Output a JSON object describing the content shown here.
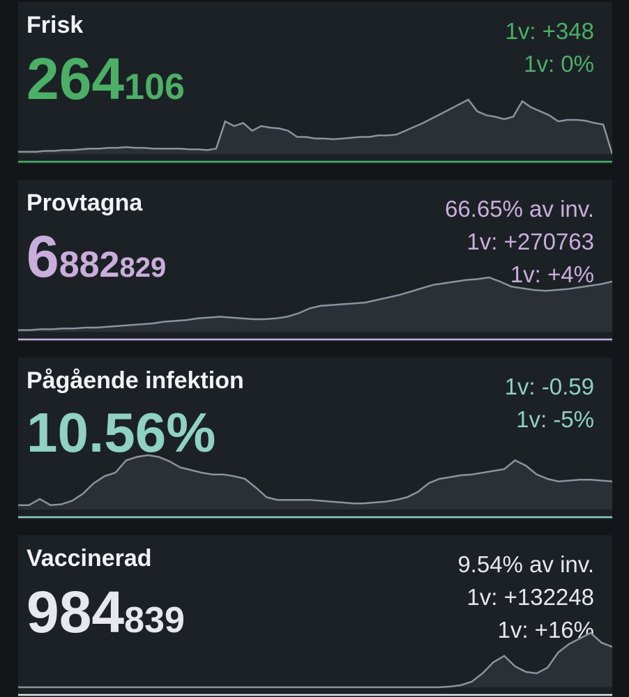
{
  "cards": [
    {
      "title": "Frisk",
      "value_major": "264",
      "value_minor": "106",
      "stats": [
        "1v: +348",
        "1v: 0%"
      ],
      "color": "#4caf66",
      "baseline_color": "#4caf66",
      "trend": [
        3,
        3,
        3,
        4,
        4,
        5,
        5,
        6,
        7,
        7,
        8,
        8,
        9,
        8,
        8,
        7,
        7,
        7,
        7,
        6,
        6,
        5,
        7,
        42,
        36,
        40,
        30,
        36,
        34,
        33,
        30,
        22,
        22,
        20,
        20,
        19,
        20,
        21,
        22,
        22,
        24,
        24,
        25,
        30,
        35,
        40,
        46,
        52,
        58,
        64,
        70,
        55,
        50,
        48,
        45,
        48,
        68,
        60,
        55,
        50,
        42,
        44,
        44,
        43,
        40,
        38,
        0
      ]
    },
    {
      "title": "Provtagna",
      "value_major": "6",
      "value_minor_a": "882",
      "value_minor": "829",
      "stats": [
        "66.65% av inv.",
        "1v: +270763",
        "1v: +4%"
      ],
      "color": "#c9aedb",
      "baseline_color": "#c9aedb",
      "trend": [
        2,
        2,
        3,
        3,
        4,
        4,
        5,
        5,
        6,
        7,
        8,
        9,
        10,
        12,
        13,
        14,
        16,
        17,
        18,
        17,
        16,
        15,
        15,
        16,
        18,
        22,
        28,
        31,
        32,
        33,
        34,
        35,
        38,
        41,
        44,
        48,
        52,
        56,
        58,
        60,
        62,
        63,
        65,
        60,
        54,
        52,
        50,
        49,
        50,
        51,
        53,
        55,
        57,
        60
      ]
    },
    {
      "title": "Pågående infektion",
      "value_major": "10.56%",
      "value_minor": "",
      "stats": [
        "1v: -0.59",
        "1v: -5%"
      ],
      "color": "#8fd1c3",
      "baseline_color": "#8fd1c3",
      "trend": [
        5,
        5,
        12,
        5,
        6,
        10,
        18,
        30,
        38,
        42,
        56,
        60,
        62,
        60,
        55,
        48,
        45,
        42,
        40,
        40,
        38,
        35,
        25,
        14,
        11,
        11,
        11,
        11,
        10,
        9,
        8,
        7,
        7,
        8,
        9,
        11,
        14,
        20,
        30,
        35,
        37,
        39,
        40,
        42,
        44,
        46,
        56,
        50,
        40,
        35,
        32,
        33,
        34,
        34,
        33,
        32
      ]
    },
    {
      "title": "Vaccinerad",
      "value_major": "984",
      "value_minor": "839",
      "stats": [
        "9.54% av inv.",
        "1v: +132248",
        "1v: +16%"
      ],
      "color": "#e6e8ee",
      "baseline_color": "#e6e8ee",
      "trend": [
        0,
        0,
        0,
        0,
        0,
        0,
        0,
        0,
        0,
        0,
        0,
        0,
        0,
        0,
        0,
        0,
        0,
        0,
        0,
        0,
        0,
        0,
        0,
        0,
        0,
        0,
        0,
        0,
        0,
        0,
        0,
        0,
        0,
        0,
        0,
        0,
        0,
        0,
        0,
        0,
        1,
        3,
        8,
        20,
        36,
        45,
        30,
        22,
        20,
        28,
        50,
        62,
        70,
        78,
        64,
        58
      ]
    }
  ]
}
